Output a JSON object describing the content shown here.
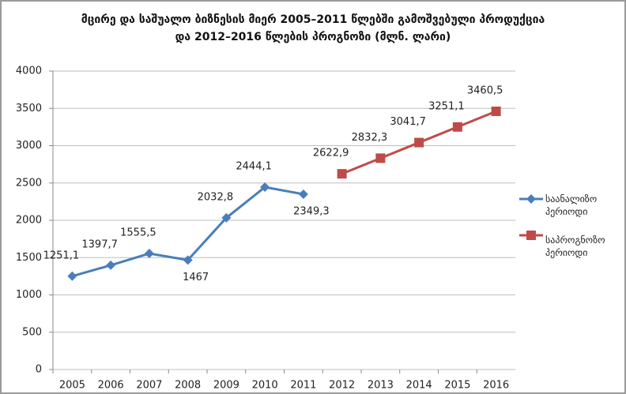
{
  "chart_data": {
    "type": "line",
    "title": "მცირე და საშუალო ბიზნესის მიერ 2005–2011 წლებში გამოშვებული პროდუქცია\nდა 2012–2016 წლების პროგნოზი (მლნ. ლარი)",
    "categories": [
      "2005",
      "2006",
      "2007",
      "2008",
      "2009",
      "2010",
      "2011",
      "2012",
      "2013",
      "2014",
      "2015",
      "2016"
    ],
    "series": [
      {
        "name": "საანალიზო პერიოდი",
        "color": "#4a7ebb",
        "marker": "diamond",
        "values": [
          1251.1,
          1397.7,
          1555.5,
          1467,
          2032.8,
          2444.1,
          2349.3,
          null,
          null,
          null,
          null,
          null
        ],
        "value_labels": [
          "1251,1",
          "1397,7",
          "1555,5",
          "1467",
          "2032,8",
          "2444,1",
          "2349,3",
          null,
          null,
          null,
          null,
          null
        ]
      },
      {
        "name": "საპროგნოზო პერიოდი",
        "color": "#be4b48",
        "marker": "square",
        "values": [
          null,
          null,
          null,
          null,
          null,
          null,
          null,
          2622.9,
          2832.3,
          3041.7,
          3251.1,
          3460.5
        ],
        "value_labels": [
          null,
          null,
          null,
          null,
          null,
          null,
          null,
          "2622,9",
          "2832,3",
          "3041,7",
          "3251,1",
          "3460,5"
        ]
      }
    ],
    "ylim": [
      0,
      4000
    ],
    "yticks": [
      0,
      500,
      1000,
      1500,
      2000,
      2500,
      3000,
      3500,
      4000
    ],
    "grid": true,
    "legend": "right"
  }
}
